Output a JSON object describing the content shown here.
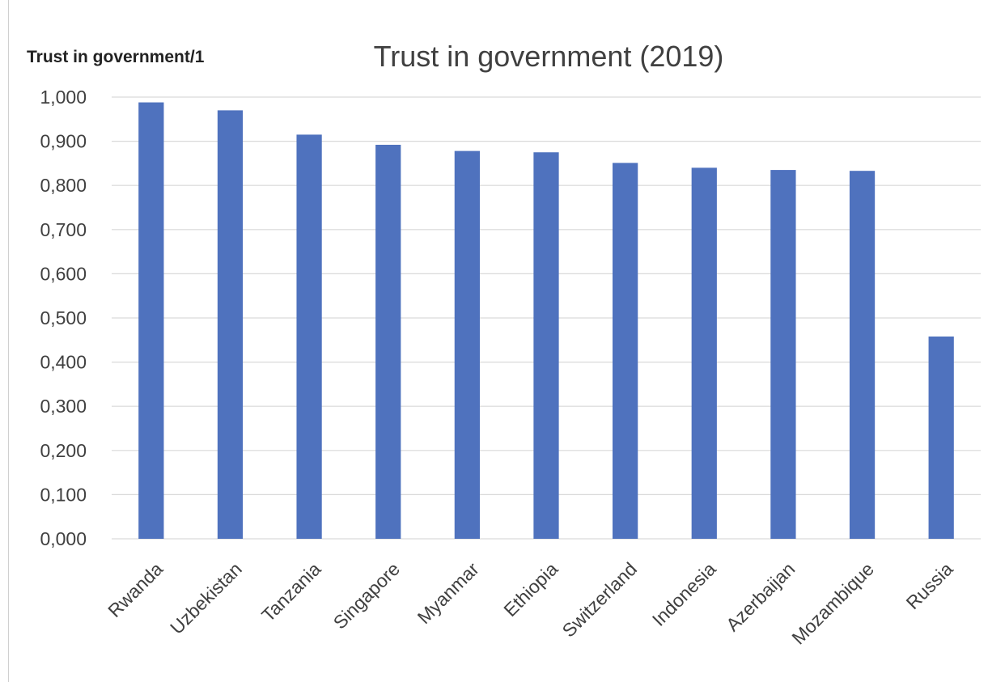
{
  "chart_data": {
    "type": "bar",
    "title": "Trust in  government (2019)",
    "ylabel": "Trust in government/1",
    "xlabel": "",
    "categories": [
      "Rwanda",
      "Uzbekistan",
      "Tanzania",
      "Singapore",
      "Myanmar",
      "Ethiopia",
      "Switzerland",
      "Indonesia",
      "Azerbaijan",
      "Mozambique",
      "Russia"
    ],
    "values": [
      0.988,
      0.97,
      0.915,
      0.892,
      0.878,
      0.875,
      0.851,
      0.84,
      0.835,
      0.833,
      0.458
    ],
    "ylim": [
      0,
      1
    ],
    "yticks": [
      "0,000",
      "0,100",
      "0,200",
      "0,300",
      "0,400",
      "0,500",
      "0,600",
      "0,700",
      "0,800",
      "0,900",
      "1,000"
    ],
    "grid": true,
    "legend": "none",
    "bar_color": "#4F72BE",
    "grid_color": "#D9D9D9"
  }
}
